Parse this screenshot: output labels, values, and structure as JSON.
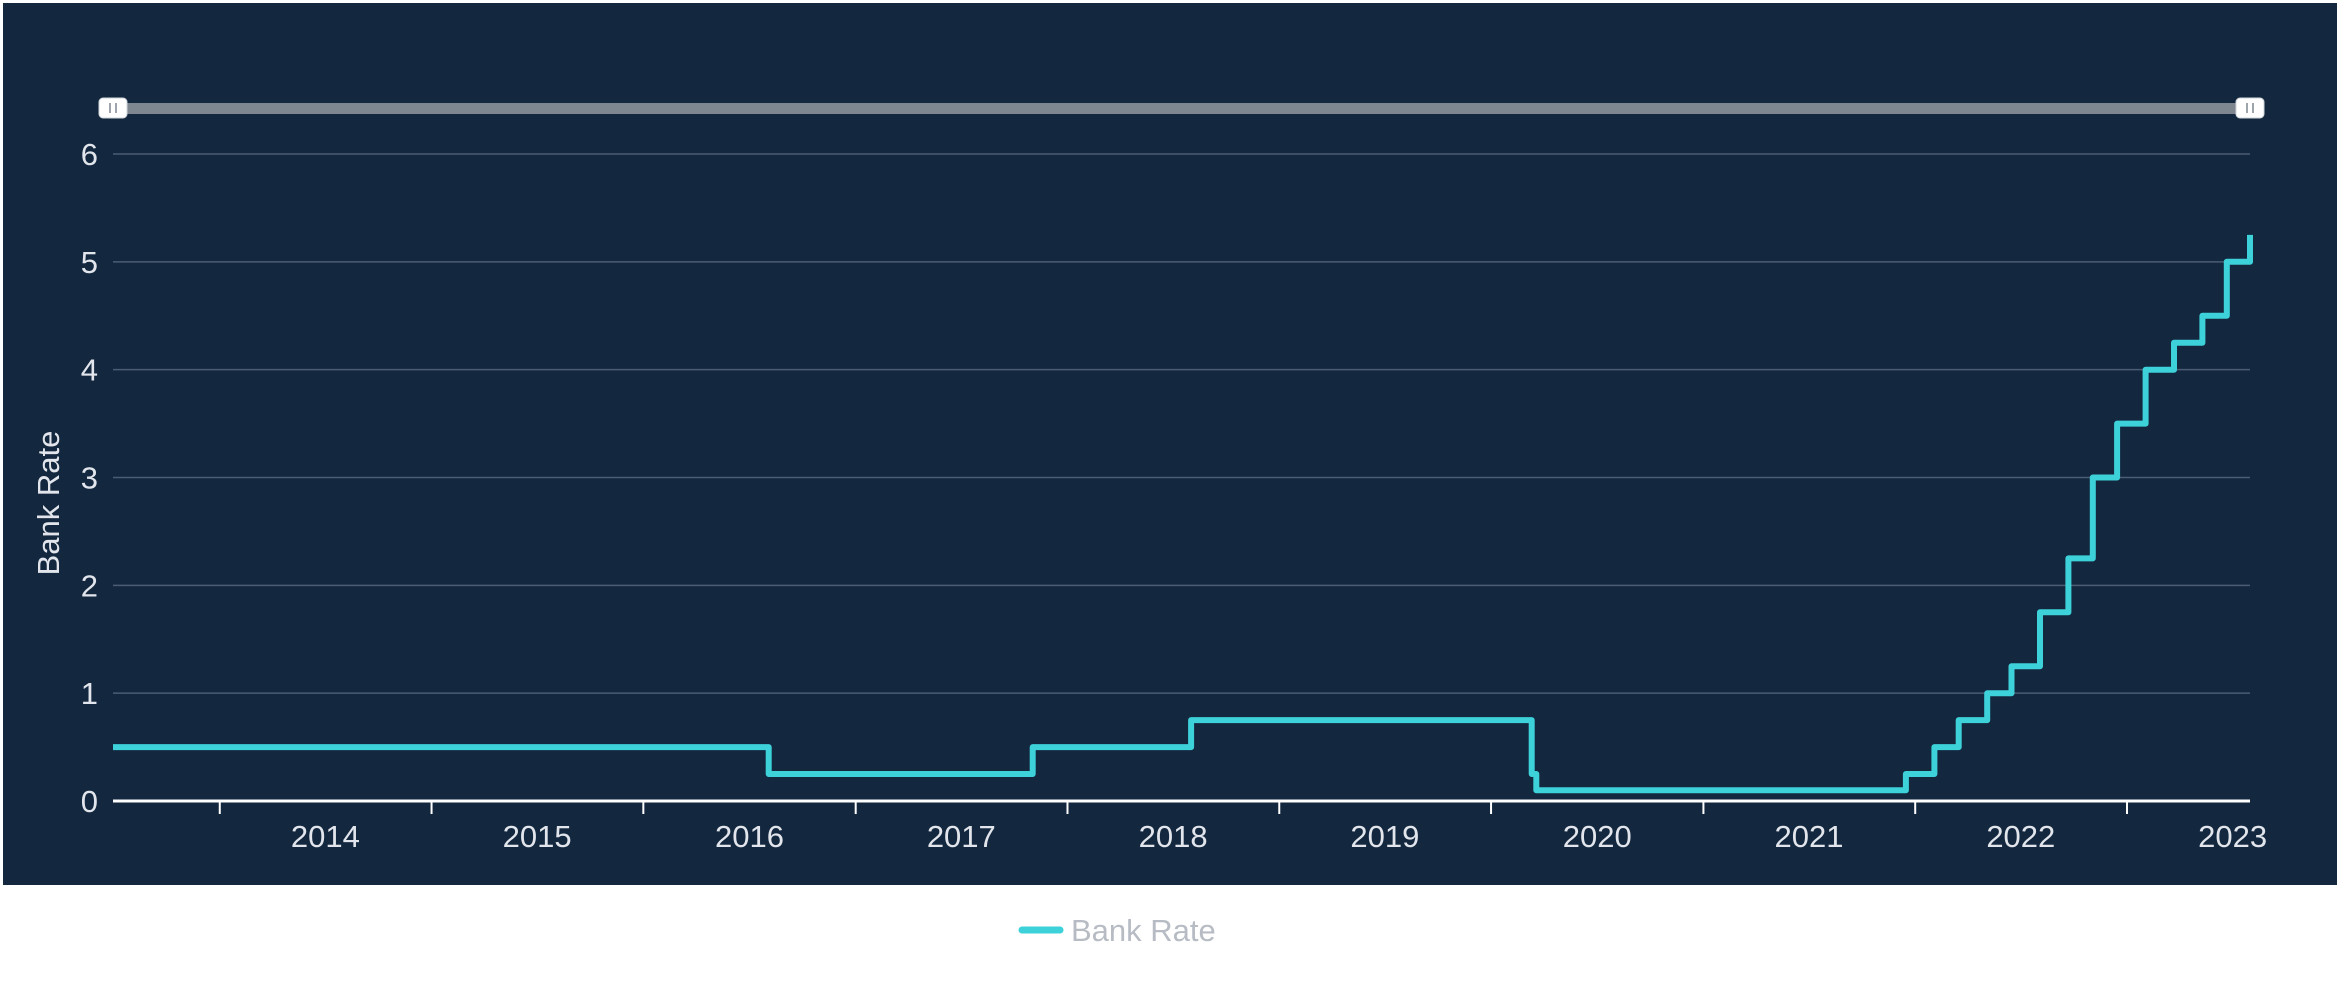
{
  "chart_data": {
    "type": "line",
    "step": "after",
    "title": "",
    "xlabel": "",
    "ylabel": "Bank Rate",
    "xlim": [
      "2013-07-01",
      "2023-08-01"
    ],
    "ylim": [
      0,
      6
    ],
    "yticks": [
      0,
      1,
      2,
      3,
      4,
      5,
      6
    ],
    "xticks": [
      "2014",
      "2015",
      "2016",
      "2017",
      "2018",
      "2019",
      "2020",
      "2021",
      "2022",
      "2023"
    ],
    "grid": true,
    "legend": "bottom-center",
    "range_selector": {
      "start": "2013-07-01",
      "end": "2023-08-01"
    },
    "series": [
      {
        "name": "Bank Rate",
        "color": "#3dd2d9",
        "points": [
          [
            "2013-07-01",
            0.5
          ],
          [
            "2016-08-04",
            0.25
          ],
          [
            "2017-11-02",
            0.5
          ],
          [
            "2018-08-02",
            0.75
          ],
          [
            "2020-03-11",
            0.25
          ],
          [
            "2020-03-19",
            0.1
          ],
          [
            "2021-12-16",
            0.25
          ],
          [
            "2022-02-03",
            0.5
          ],
          [
            "2022-03-17",
            0.75
          ],
          [
            "2022-05-05",
            1.0
          ],
          [
            "2022-06-16",
            1.25
          ],
          [
            "2022-08-04",
            1.75
          ],
          [
            "2022-09-22",
            2.25
          ],
          [
            "2022-11-03",
            3.0
          ],
          [
            "2022-12-15",
            3.5
          ],
          [
            "2023-02-02",
            4.0
          ],
          [
            "2023-03-23",
            4.25
          ],
          [
            "2023-05-11",
            4.5
          ],
          [
            "2023-06-22",
            5.0
          ],
          [
            "2023-08-03",
            5.25
          ],
          [
            "2023-08-01",
            5.25
          ]
        ]
      }
    ]
  },
  "colors": {
    "panel_background": "#13273f",
    "gridline": "#4b5d73",
    "axis_line": "#ffffff",
    "text": "#e2e6ec",
    "series": "#3dd2d9",
    "range_bar": "#7e8690"
  }
}
